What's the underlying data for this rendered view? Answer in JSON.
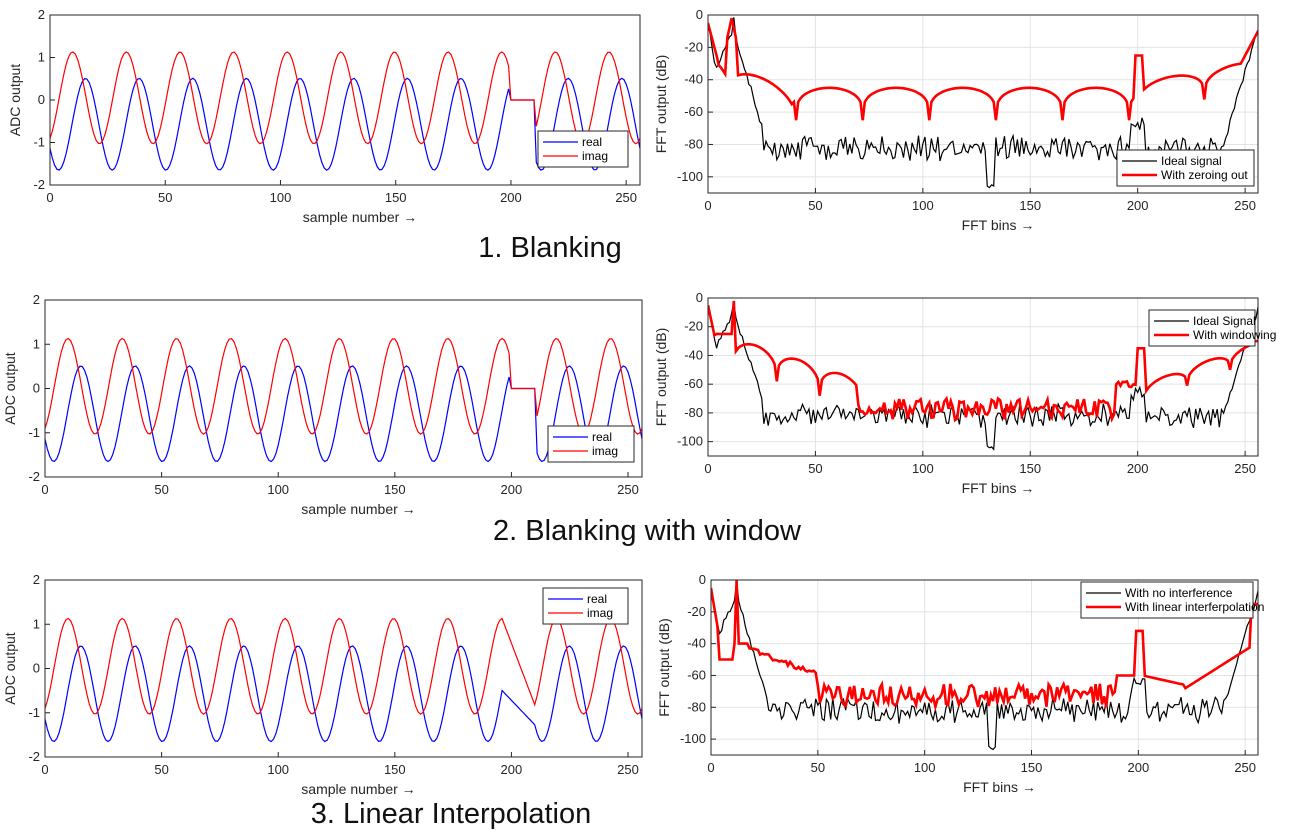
{
  "captions": [
    "1. Blanking",
    "2. Blanking with window",
    "3. Linear Interpolation"
  ],
  "colors": {
    "real": "#0000ff",
    "imag": "#ff0000",
    "ideal": "#000000",
    "processed": "#ff0000"
  },
  "chart_data": [
    {
      "type": "line",
      "name": "time-blanking",
      "xlabel": "sample number →",
      "ylabel": "ADC output",
      "xlim": [
        0,
        256
      ],
      "ylim": [
        -2,
        2
      ],
      "xticks": [
        0,
        50,
        100,
        150,
        200,
        250
      ],
      "yticks": [
        -2,
        -1,
        0,
        1,
        2
      ],
      "grid": false,
      "legend_position": "lower-right",
      "signal": {
        "real_phase": 3.7,
        "imag_phase": 5.2,
        "cycles": 11,
        "amplitude": 1.08,
        "offset": -0.55,
        "blank": [
          200,
          210
        ]
      },
      "series": [
        {
          "name": "real",
          "key": "real"
        },
        {
          "name": "imag",
          "key": "imag"
        }
      ]
    },
    {
      "type": "line",
      "name": "fft-blanking",
      "xlabel": "FFT bins →",
      "ylabel": "FFT output (dB)",
      "xlim": [
        0,
        256
      ],
      "ylim": [
        -110,
        0
      ],
      "xticks": [
        0,
        50,
        100,
        150,
        200,
        250
      ],
      "yticks": [
        0,
        -20,
        -40,
        -60,
        -80,
        -100
      ],
      "grid": true,
      "legend_position": "lower-right",
      "mode": "zero",
      "series": [
        {
          "name": "Ideal signal",
          "key": "ideal"
        },
        {
          "name": "With zeroing out",
          "key": "processed"
        }
      ]
    },
    {
      "type": "line",
      "name": "time-window",
      "xlabel": "sample number →",
      "ylabel": "ADC output",
      "xlim": [
        0,
        256
      ],
      "ylim": [
        -2,
        2
      ],
      "xticks": [
        0,
        50,
        100,
        150,
        200,
        250
      ],
      "yticks": [
        -2,
        -1,
        0,
        1,
        2
      ],
      "grid": false,
      "legend_position": "lower-right",
      "signal": {
        "real_phase": 3.7,
        "imag_phase": 5.2,
        "cycles": 11,
        "amplitude": 1.08,
        "offset": -0.55,
        "blank": [
          200,
          210
        ]
      },
      "series": [
        {
          "name": "real",
          "key": "real"
        },
        {
          "name": "imag",
          "key": "imag"
        }
      ]
    },
    {
      "type": "line",
      "name": "fft-window",
      "xlabel": "FFT bins →",
      "ylabel": "FFT output (dB)",
      "xlim": [
        0,
        256
      ],
      "ylim": [
        -110,
        0
      ],
      "xticks": [
        0,
        50,
        100,
        150,
        200,
        250
      ],
      "yticks": [
        0,
        -20,
        -40,
        -60,
        -80,
        -100
      ],
      "grid": true,
      "legend_position": "top-right",
      "mode": "window",
      "series": [
        {
          "name": "Ideal Signal",
          "key": "ideal"
        },
        {
          "name": "With windowing",
          "key": "processed"
        }
      ]
    },
    {
      "type": "line",
      "name": "time-interp",
      "xlabel": "sample number →",
      "ylabel": "ADC output",
      "xlim": [
        0,
        256
      ],
      "ylim": [
        -2,
        2
      ],
      "xticks": [
        0,
        50,
        100,
        150,
        200,
        250
      ],
      "yticks": [
        -2,
        -1,
        0,
        1,
        2
      ],
      "grid": false,
      "legend_position": "top-right",
      "signal": {
        "real_phase": 3.7,
        "imag_phase": 5.2,
        "cycles": 11,
        "amplitude": 1.08,
        "offset": -0.55,
        "interp": [
          196,
          210
        ]
      },
      "series": [
        {
          "name": "real",
          "key": "real"
        },
        {
          "name": "imag",
          "key": "imag"
        }
      ]
    },
    {
      "type": "line",
      "name": "fft-interp",
      "xlabel": "FFT bins →",
      "ylabel": "FFT output (dB)",
      "xlim": [
        0,
        256
      ],
      "ylim": [
        -110,
        0
      ],
      "xticks": [
        0,
        50,
        100,
        150,
        200,
        250
      ],
      "yticks": [
        0,
        -20,
        -40,
        -60,
        -80,
        -100
      ],
      "grid": true,
      "legend_position": "top-right",
      "mode": "interp",
      "series": [
        {
          "name": "With no interference",
          "key": "ideal"
        },
        {
          "name": "With linear interferpolation",
          "key": "processed"
        }
      ]
    }
  ]
}
